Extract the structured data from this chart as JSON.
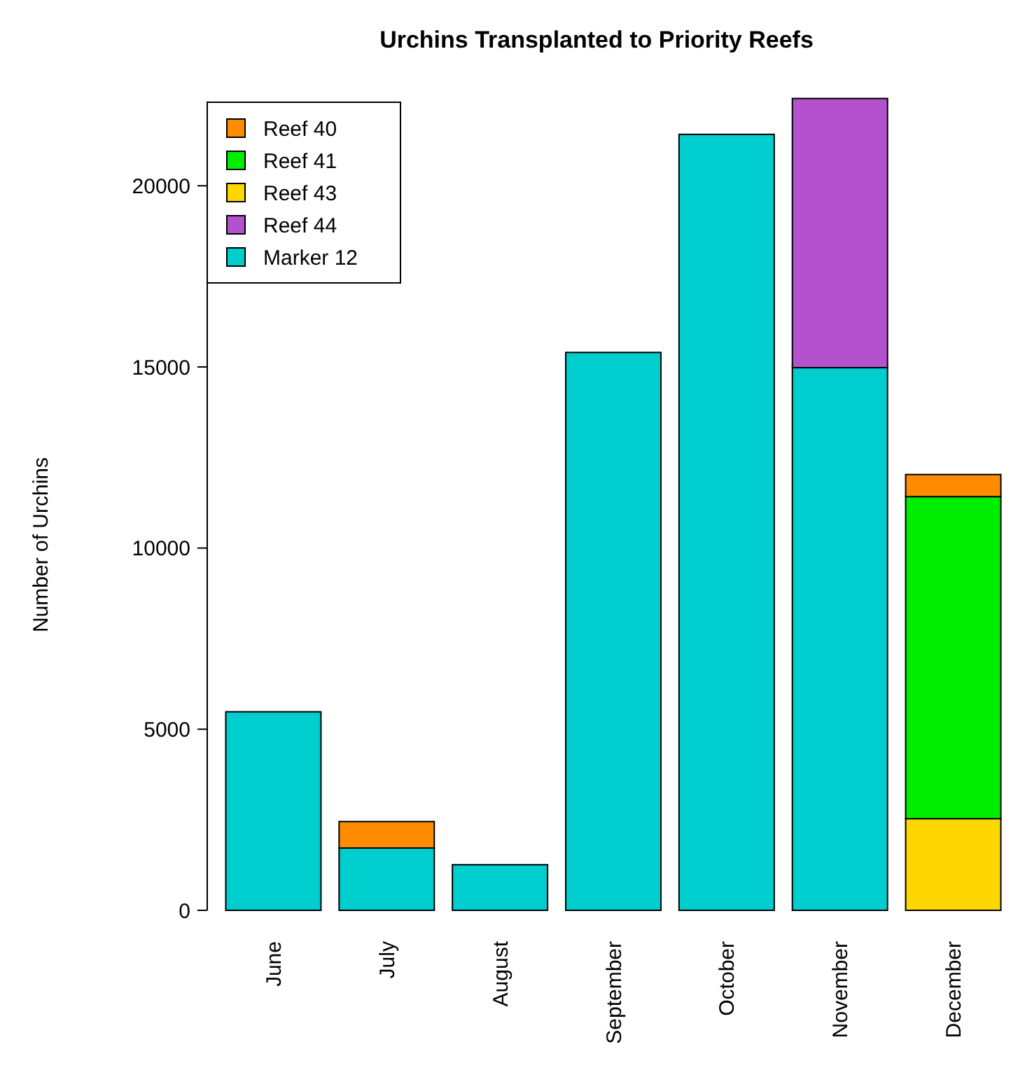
{
  "chart_data": {
    "type": "bar",
    "title": "Urchins Transplanted to Priority Reefs",
    "ylabel": "Number of Urchins",
    "categories": [
      "June",
      "July",
      "August",
      "September",
      "October",
      "November",
      "December"
    ],
    "stacked": true,
    "legend": "top left",
    "ylim": [
      0,
      22500
    ],
    "yticks": [
      0,
      5000,
      10000,
      15000,
      20000
    ],
    "series": [
      {
        "name": "Marker 12",
        "color": "#00cdcd",
        "values": [
          5480,
          1720,
          1260,
          15400,
          21420,
          14980,
          null
        ]
      },
      {
        "name": "Reef 43",
        "color": "#ffd700",
        "values": [
          null,
          null,
          null,
          null,
          null,
          null,
          2530
        ]
      },
      {
        "name": "Reef 41",
        "color": "#00ee00",
        "values": [
          null,
          null,
          null,
          null,
          null,
          null,
          8890
        ]
      },
      {
        "name": "Reef 40",
        "color": "#ff8c00",
        "values": [
          null,
          730,
          null,
          null,
          null,
          null,
          610
        ]
      },
      {
        "name": "Reef 44",
        "color": "#b452cd",
        "values": [
          null,
          null,
          null,
          null,
          null,
          7430,
          null
        ]
      }
    ]
  }
}
